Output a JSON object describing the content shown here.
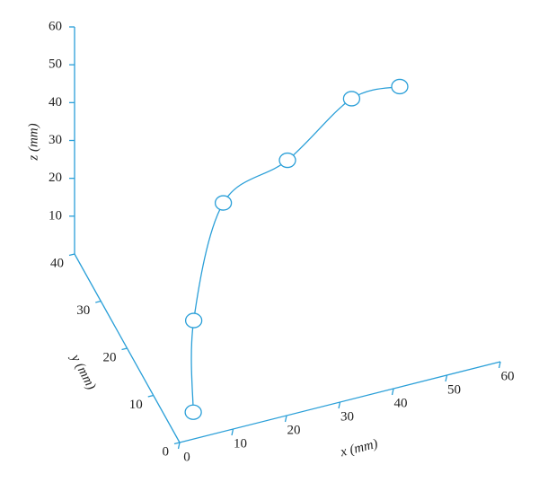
{
  "chart_data": {
    "type": "line3d",
    "x": [
      5,
      10,
      18,
      30,
      42,
      51
    ],
    "y": [
      5,
      15,
      20,
      20,
      20,
      20
    ],
    "z": [
      0,
      10,
      32,
      39,
      51,
      51
    ],
    "color": "#2a9fd8",
    "xlim": [
      0,
      60
    ],
    "ylim": [
      0,
      40
    ],
    "zlim": [
      0,
      60
    ],
    "xticks": [
      0,
      10,
      20,
      30,
      40,
      50,
      60
    ],
    "yticks": [
      0,
      10,
      20,
      30,
      40
    ],
    "zticks": [
      10,
      20,
      30,
      40,
      50,
      60
    ],
    "xlabel": "x (mm)",
    "ylabel": "y (mm)",
    "zlabel": "z (mm)"
  }
}
